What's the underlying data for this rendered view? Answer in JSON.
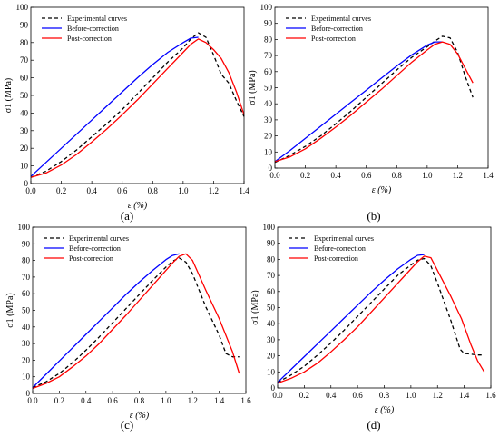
{
  "chart_data": [
    {
      "type": "line",
      "panel_label": "(a)",
      "xlabel": "ε (%)",
      "ylabel": "σ1 (MPa)",
      "xlim": [
        0,
        1.4
      ],
      "ylim": [
        0,
        100
      ],
      "xticks": [
        "0.0",
        "0.2",
        "0.4",
        "0.6",
        "0.8",
        "1.0",
        "1.2",
        "1.4"
      ],
      "yticks": [
        "0",
        "10",
        "20",
        "30",
        "40",
        "50",
        "60",
        "70",
        "80",
        "90",
        "100"
      ],
      "legend_position": "top-left",
      "series": [
        {
          "name": "Experimental curves",
          "color": "#000000",
          "dash": "dashed",
          "points": [
            [
              0,
              3.5
            ],
            [
              0.1,
              7
            ],
            [
              0.2,
              12.5
            ],
            [
              0.3,
              19
            ],
            [
              0.4,
              26.5
            ],
            [
              0.5,
              34
            ],
            [
              0.6,
              42
            ],
            [
              0.7,
              51
            ],
            [
              0.8,
              60
            ],
            [
              0.9,
              69
            ],
            [
              1.0,
              77
            ],
            [
              1.05,
              82
            ],
            [
              1.1,
              85.5
            ],
            [
              1.15,
              83
            ],
            [
              1.2,
              73
            ],
            [
              1.25,
              62
            ],
            [
              1.3,
              57
            ],
            [
              1.35,
              47
            ],
            [
              1.4,
              38
            ]
          ]
        },
        {
          "name": "Before-correction",
          "color": "#0000ff",
          "dash": "solid",
          "points": [
            [
              0,
              4
            ],
            [
              0.1,
              12
            ],
            [
              0.2,
              20
            ],
            [
              0.3,
              28
            ],
            [
              0.4,
              36
            ],
            [
              0.5,
              44
            ],
            [
              0.6,
              52
            ],
            [
              0.7,
              60
            ],
            [
              0.8,
              67.5
            ],
            [
              0.9,
              74.5
            ],
            [
              1.0,
              80
            ],
            [
              1.05,
              82.5
            ],
            [
              1.1,
              83
            ]
          ]
        },
        {
          "name": "Post-correction",
          "color": "#ff0000",
          "dash": "solid",
          "points": [
            [
              0,
              3.5
            ],
            [
              0.1,
              6
            ],
            [
              0.2,
              10.5
            ],
            [
              0.3,
              16.5
            ],
            [
              0.4,
              23.5
            ],
            [
              0.5,
              31
            ],
            [
              0.6,
              39
            ],
            [
              0.7,
              47.5
            ],
            [
              0.8,
              56.5
            ],
            [
              0.9,
              65.5
            ],
            [
              1.0,
              74.5
            ],
            [
              1.05,
              79
            ],
            [
              1.1,
              82
            ],
            [
              1.15,
              80
            ],
            [
              1.2,
              76
            ],
            [
              1.25,
              71
            ],
            [
              1.3,
              63
            ],
            [
              1.35,
              52
            ],
            [
              1.4,
              39
            ]
          ]
        }
      ]
    },
    {
      "type": "line",
      "panel_label": "(b)",
      "xlabel": "ε (%)",
      "ylabel": "σ1 (MPa)",
      "xlim": [
        0,
        1.4
      ],
      "ylim": [
        0,
        100
      ],
      "xticks": [
        "0.0",
        "0.2",
        "0.4",
        "0.6",
        "0.8",
        "1.0",
        "1.2",
        "1.4"
      ],
      "yticks": [
        "0",
        "10",
        "20",
        "30",
        "40",
        "50",
        "60",
        "70",
        "80",
        "90",
        "100"
      ],
      "legend_position": "top-left",
      "series": [
        {
          "name": "Experimental curves",
          "color": "#000000",
          "dash": "dashed",
          "points": [
            [
              0,
              3.5
            ],
            [
              0.1,
              8
            ],
            [
              0.2,
              13.5
            ],
            [
              0.3,
              20
            ],
            [
              0.4,
              27.5
            ],
            [
              0.5,
              35.5
            ],
            [
              0.6,
              44
            ],
            [
              0.7,
              52.5
            ],
            [
              0.8,
              61
            ],
            [
              0.9,
              69
            ],
            [
              1.0,
              75.5
            ],
            [
              1.05,
              79
            ],
            [
              1.1,
              82
            ],
            [
              1.15,
              81
            ],
            [
              1.2,
              72
            ],
            [
              1.25,
              57
            ],
            [
              1.3,
              44
            ]
          ]
        },
        {
          "name": "Before-correction",
          "color": "#0000ff",
          "dash": "solid",
          "points": [
            [
              0,
              4
            ],
            [
              0.1,
              11
            ],
            [
              0.2,
              18.5
            ],
            [
              0.3,
              26
            ],
            [
              0.4,
              33.5
            ],
            [
              0.5,
              41
            ],
            [
              0.6,
              48.5
            ],
            [
              0.7,
              56
            ],
            [
              0.8,
              63.5
            ],
            [
              0.9,
              70.5
            ],
            [
              1.0,
              76.5
            ],
            [
              1.05,
              78.5
            ],
            [
              1.1,
              78.5
            ]
          ]
        },
        {
          "name": "Post-correction",
          "color": "#ff0000",
          "dash": "solid",
          "points": [
            [
              0,
              4
            ],
            [
              0.1,
              7
            ],
            [
              0.2,
              12
            ],
            [
              0.3,
              18.5
            ],
            [
              0.4,
              25.5
            ],
            [
              0.5,
              33
            ],
            [
              0.6,
              41
            ],
            [
              0.7,
              49
            ],
            [
              0.8,
              57.5
            ],
            [
              0.9,
              66
            ],
            [
              1.0,
              73.5
            ],
            [
              1.05,
              77
            ],
            [
              1.1,
              78.5
            ],
            [
              1.15,
              77
            ],
            [
              1.2,
              71
            ],
            [
              1.25,
              62
            ],
            [
              1.3,
              53
            ]
          ]
        }
      ]
    },
    {
      "type": "line",
      "panel_label": "(c)",
      "xlabel": "ε (%)",
      "ylabel": "σ1 (MPa)",
      "xlim": [
        0,
        1.6
      ],
      "ylim": [
        0,
        100
      ],
      "xticks": [
        "0.0",
        "0.2",
        "0.4",
        "0.6",
        "0.8",
        "1.0",
        "1.2",
        "1.4",
        "1.6"
      ],
      "yticks": [
        "0",
        "10",
        "20",
        "30",
        "40",
        "50",
        "60",
        "70",
        "80",
        "90",
        "100"
      ],
      "legend_position": "top-left",
      "series": [
        {
          "name": "Experimental curves",
          "color": "#000000",
          "dash": "dashed",
          "points": [
            [
              0,
              3.5
            ],
            [
              0.1,
              7
            ],
            [
              0.2,
              12
            ],
            [
              0.3,
              18.5
            ],
            [
              0.4,
              26
            ],
            [
              0.5,
              34
            ],
            [
              0.6,
              42.5
            ],
            [
              0.7,
              51
            ],
            [
              0.8,
              59.5
            ],
            [
              0.9,
              68
            ],
            [
              1.0,
              76
            ],
            [
              1.05,
              79.5
            ],
            [
              1.1,
              81.5
            ],
            [
              1.15,
              79
            ],
            [
              1.2,
              72
            ],
            [
              1.3,
              52
            ],
            [
              1.4,
              35
            ],
            [
              1.45,
              24
            ],
            [
              1.5,
              22
            ],
            [
              1.55,
              22
            ]
          ]
        },
        {
          "name": "Before-correction",
          "color": "#0000ff",
          "dash": "solid",
          "points": [
            [
              0,
              3.5
            ],
            [
              0.1,
              11.5
            ],
            [
              0.2,
              19.5
            ],
            [
              0.3,
              27.5
            ],
            [
              0.4,
              35.5
            ],
            [
              0.5,
              43.5
            ],
            [
              0.6,
              51.5
            ],
            [
              0.7,
              59.5
            ],
            [
              0.8,
              67
            ],
            [
              0.9,
              74
            ],
            [
              1.0,
              80.5
            ],
            [
              1.05,
              83
            ],
            [
              1.1,
              84
            ]
          ]
        },
        {
          "name": "Post-correction",
          "color": "#ff0000",
          "dash": "solid",
          "points": [
            [
              0,
              3
            ],
            [
              0.1,
              6
            ],
            [
              0.2,
              10
            ],
            [
              0.3,
              16
            ],
            [
              0.4,
              22.5
            ],
            [
              0.5,
              30
            ],
            [
              0.6,
              38.5
            ],
            [
              0.7,
              47
            ],
            [
              0.8,
              56
            ],
            [
              0.9,
              65
            ],
            [
              1.0,
              74
            ],
            [
              1.05,
              78.5
            ],
            [
              1.1,
              82.5
            ],
            [
              1.15,
              84
            ],
            [
              1.2,
              80
            ],
            [
              1.3,
              62
            ],
            [
              1.4,
              45
            ],
            [
              1.5,
              25
            ],
            [
              1.55,
              12
            ]
          ]
        }
      ]
    },
    {
      "type": "line",
      "panel_label": "(d)",
      "xlabel": "ε (%)",
      "ylabel": "σ1 (MPa)",
      "xlim": [
        0,
        1.6
      ],
      "ylim": [
        0,
        100
      ],
      "xticks": [
        "0.0",
        "0.2",
        "0.4",
        "0.6",
        "0.8",
        "1.0",
        "1.2",
        "1.4",
        "1.6"
      ],
      "yticks": [
        "0",
        "10",
        "20",
        "30",
        "40",
        "50",
        "60",
        "70",
        "80",
        "90",
        "100"
      ],
      "legend_position": "top-left",
      "series": [
        {
          "name": "Experimental curves",
          "color": "#000000",
          "dash": "dashed",
          "points": [
            [
              0,
              3.5
            ],
            [
              0.1,
              8
            ],
            [
              0.2,
              13.5
            ],
            [
              0.3,
              20.5
            ],
            [
              0.4,
              28
            ],
            [
              0.5,
              36
            ],
            [
              0.6,
              44.5
            ],
            [
              0.7,
              53
            ],
            [
              0.8,
              61.5
            ],
            [
              0.9,
              70
            ],
            [
              1.0,
              76.5
            ],
            [
              1.05,
              79.5
            ],
            [
              1.1,
              80.5
            ],
            [
              1.15,
              76
            ],
            [
              1.2,
              65
            ],
            [
              1.3,
              42
            ],
            [
              1.37,
              24
            ],
            [
              1.4,
              21.5
            ],
            [
              1.5,
              20.5
            ],
            [
              1.55,
              20.5
            ]
          ]
        },
        {
          "name": "Before-correction",
          "color": "#0000ff",
          "dash": "solid",
          "points": [
            [
              0,
              3.5
            ],
            [
              0.1,
              11.5
            ],
            [
              0.2,
              19.5
            ],
            [
              0.3,
              27.5
            ],
            [
              0.4,
              35.5
            ],
            [
              0.5,
              43.5
            ],
            [
              0.6,
              51.5
            ],
            [
              0.7,
              59.5
            ],
            [
              0.8,
              67
            ],
            [
              0.9,
              74
            ],
            [
              1.0,
              80
            ],
            [
              1.05,
              82.5
            ],
            [
              1.1,
              83
            ]
          ]
        },
        {
          "name": "Post-correction",
          "color": "#ff0000",
          "dash": "solid",
          "points": [
            [
              0,
              3
            ],
            [
              0.1,
              6
            ],
            [
              0.2,
              10
            ],
            [
              0.3,
              15.5
            ],
            [
              0.4,
              22.5
            ],
            [
              0.5,
              30
            ],
            [
              0.6,
              38
            ],
            [
              0.7,
              47
            ],
            [
              0.8,
              56
            ],
            [
              0.9,
              65
            ],
            [
              1.0,
              74
            ],
            [
              1.05,
              78.5
            ],
            [
              1.1,
              82
            ],
            [
              1.15,
              81
            ],
            [
              1.2,
              73
            ],
            [
              1.3,
              57
            ],
            [
              1.38,
              43
            ],
            [
              1.45,
              27
            ],
            [
              1.5,
              17
            ],
            [
              1.55,
              10
            ]
          ]
        }
      ]
    }
  ]
}
